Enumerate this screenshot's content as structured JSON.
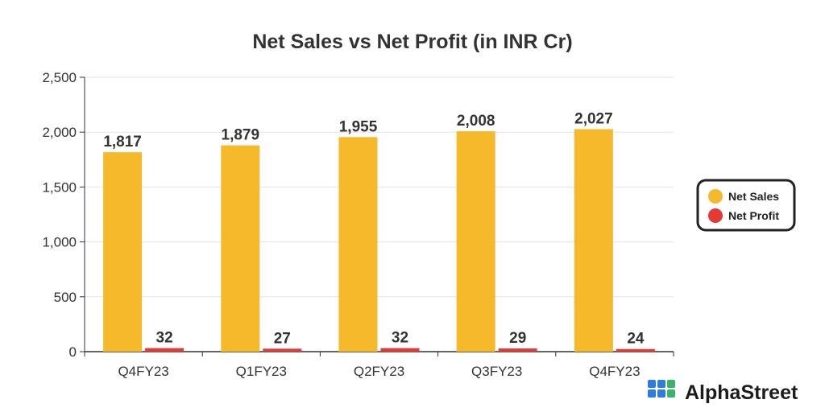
{
  "chart_data": {
    "type": "bar",
    "title": "Net Sales vs Net Profit (in INR Cr)",
    "categories": [
      "Q4FY23",
      "Q1FY23",
      "Q2FY23",
      "Q3FY23",
      "Q4FY23"
    ],
    "series": [
      {
        "name": "Net Sales",
        "values": [
          1817,
          1879,
          1955,
          2008,
          2027
        ],
        "labels": [
          "1,817",
          "1,879",
          "1,955",
          "2,008",
          "2,027"
        ],
        "color": "#F6B92B"
      },
      {
        "name": "Net Profit",
        "values": [
          32,
          27,
          32,
          29,
          24
        ],
        "labels": [
          "32",
          "27",
          "32",
          "29",
          "24"
        ],
        "color": "#E53935"
      }
    ],
    "ylim": [
      0,
      2500
    ],
    "yticks": [
      0,
      500,
      1000,
      1500,
      2000,
      2500
    ],
    "ytick_labels": [
      "0",
      "500",
      "1,000",
      "1,500",
      "2,000",
      "2,500"
    ],
    "grid": true,
    "legend": "right"
  },
  "brand": {
    "name": "AlphaStreet",
    "logo_colors": [
      "#2E7DD8",
      "#3BB36B"
    ]
  }
}
